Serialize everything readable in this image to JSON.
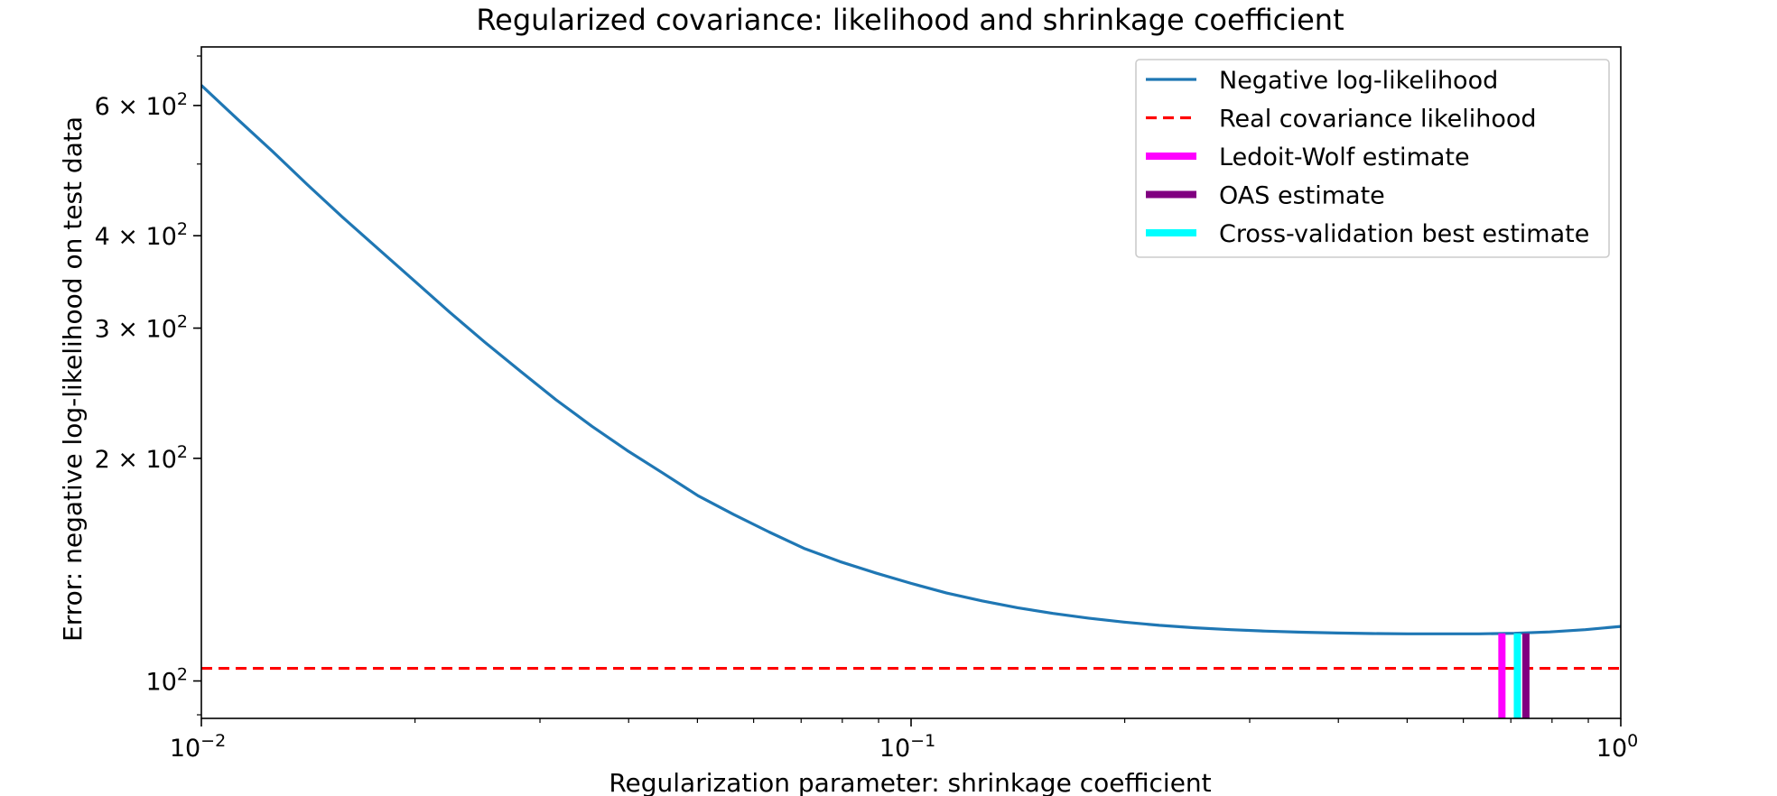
{
  "chart_data": {
    "type": "line",
    "title": "Regularized covariance: likelihood and shrinkage coefficient",
    "xlabel": "Regularization parameter: shrinkage coefficient",
    "ylabel": "Error: negative log-likelihood on test data",
    "xscale": "log",
    "yscale": "log",
    "xlim": [
      0.01,
      1.0
    ],
    "ylim": [
      89,
      720
    ],
    "x_ticks": [
      {
        "value": 0.01,
        "base": "10",
        "exp": "−2"
      },
      {
        "value": 0.1,
        "base": "10",
        "exp": "−1"
      },
      {
        "value": 1.0,
        "base": "10",
        "exp": "0"
      }
    ],
    "y_ticks": [
      {
        "value": 100,
        "mant": "",
        "base": "10",
        "exp": "2"
      },
      {
        "value": 200,
        "mant": "2",
        "base": "10",
        "exp": "2"
      },
      {
        "value": 300,
        "mant": "3",
        "base": "10",
        "exp": "2"
      },
      {
        "value": 400,
        "mant": "4",
        "base": "10",
        "exp": "2"
      },
      {
        "value": 600,
        "mant": "6",
        "base": "10",
        "exp": "2"
      }
    ],
    "series": [
      {
        "name": "Negative log-likelihood",
        "style": "line",
        "color": "#1f77b4",
        "x": [
          0.01,
          0.0112,
          0.0126,
          0.0141,
          0.0158,
          0.0178,
          0.02,
          0.0224,
          0.0251,
          0.0282,
          0.0316,
          0.0355,
          0.0398,
          0.0447,
          0.0501,
          0.0562,
          0.0631,
          0.0708,
          0.0794,
          0.0891,
          0.1,
          0.1122,
          0.1259,
          0.1413,
          0.1585,
          0.1778,
          0.1995,
          0.2239,
          0.2512,
          0.2818,
          0.3162,
          0.3548,
          0.3981,
          0.4467,
          0.5012,
          0.5623,
          0.631,
          0.7079,
          0.7943,
          0.8913,
          1.0
        ],
        "y": [
          639,
          577,
          520,
          469,
          424,
          383,
          347,
          315,
          287,
          262,
          240,
          221,
          205,
          191,
          178,
          168,
          159,
          151,
          145,
          140,
          135.5,
          131.5,
          128.3,
          125.6,
          123.4,
          121.6,
          120.1,
          118.9,
          118.0,
          117.3,
          116.8,
          116.4,
          116.1,
          115.9,
          115.8,
          115.8,
          115.8,
          116.0,
          116.5,
          117.3,
          118.5
        ]
      },
      {
        "name": "Real covariance likelihood",
        "style": "hline-dashed",
        "color": "#ff0000",
        "y_value": 104
      },
      {
        "name": "Ledoit-Wolf estimate",
        "style": "vline",
        "color": "#ff00ff",
        "x_value": 0.68,
        "y_top": 116
      },
      {
        "name": "OAS estimate",
        "style": "vline",
        "color": "#800080",
        "x_value": 0.735,
        "y_top": 116
      },
      {
        "name": "Cross-validation best estimate",
        "style": "vline",
        "color": "#00ffff",
        "x_value": 0.715,
        "y_top": 116
      }
    ],
    "legend": {
      "placement": "top-right",
      "entries": [
        {
          "label": "Negative log-likelihood",
          "color": "#1f77b4",
          "style": "solid"
        },
        {
          "label": "Real covariance likelihood",
          "color": "#ff0000",
          "style": "dashed"
        },
        {
          "label": "Ledoit-Wolf estimate",
          "color": "#ff00ff",
          "style": "thick"
        },
        {
          "label": "OAS estimate",
          "color": "#800080",
          "style": "thick"
        },
        {
          "label": "Cross-validation best estimate",
          "color": "#00ffff",
          "style": "thick"
        }
      ]
    },
    "grid": false
  }
}
